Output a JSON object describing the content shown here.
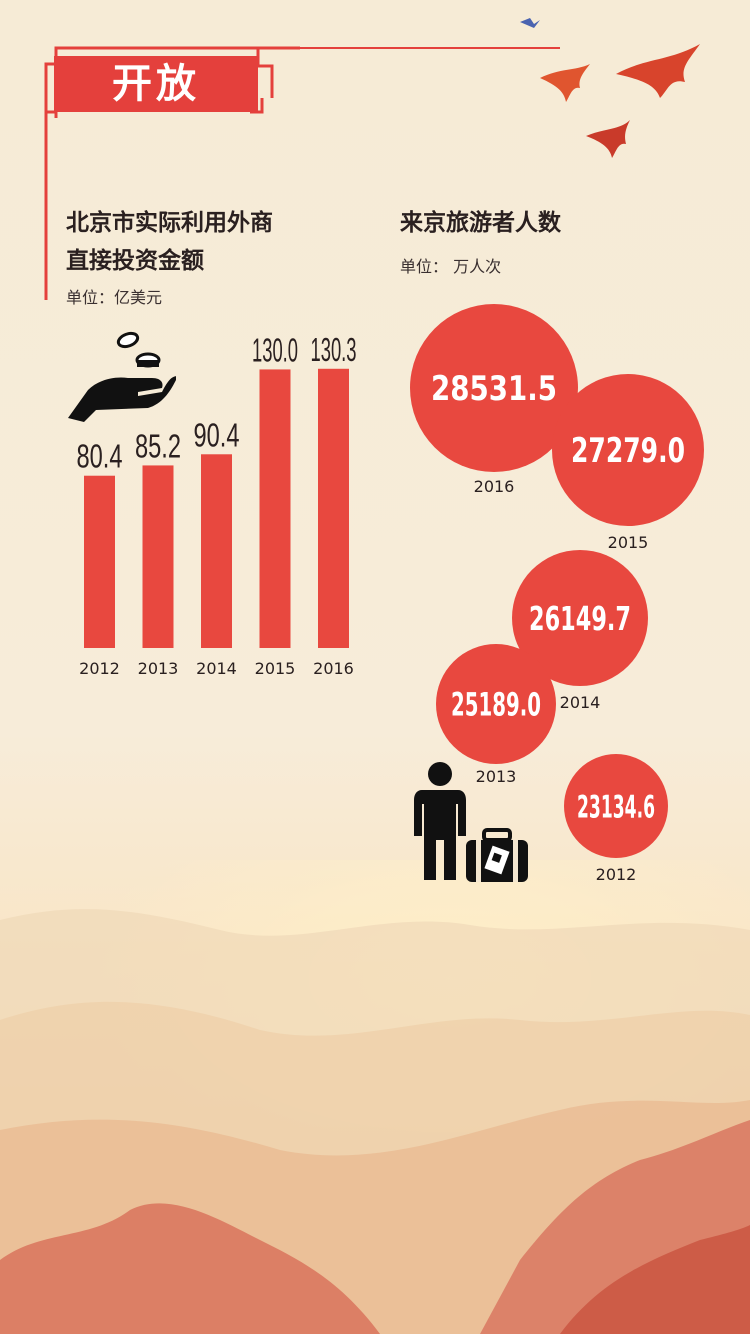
{
  "header": {
    "title": "开放"
  },
  "fdi": {
    "title_line1": "北京市实际利用外商",
    "title_line2": "直接投资金额",
    "unit": "单位：亿美元",
    "icon": "hand-coins-icon"
  },
  "tourism": {
    "title": "来京旅游者人数",
    "unit": "单位： 万人次",
    "icons": [
      "person-icon",
      "luggage-icon"
    ]
  },
  "colors": {
    "accent": "#e8483f",
    "title_bg": "#e4403c",
    "text": "#2a2020"
  },
  "chart_data": [
    {
      "type": "bar",
      "title": "北京市实际利用外商直接投资金额",
      "unit": "单位：亿美元",
      "categories": [
        "2012",
        "2013",
        "2014",
        "2015",
        "2016"
      ],
      "values": [
        80.4,
        85.2,
        90.4,
        130.0,
        130.3
      ],
      "value_labels": [
        "80.4",
        "85.2",
        "90.4",
        "130.0",
        "130.3"
      ],
      "ylim": [
        0,
        140
      ],
      "grid": false
    },
    {
      "type": "bubble",
      "title": "来京旅游者人数",
      "unit": "单位： 万人次",
      "categories": [
        "2016",
        "2015",
        "2014",
        "2013",
        "2012"
      ],
      "values": [
        28531.5,
        27279.0,
        26149.7,
        25189.0,
        23134.6
      ],
      "value_labels": [
        "28531.5",
        "27279.0",
        "26149.7",
        "25189.0",
        "23134.6"
      ]
    }
  ]
}
